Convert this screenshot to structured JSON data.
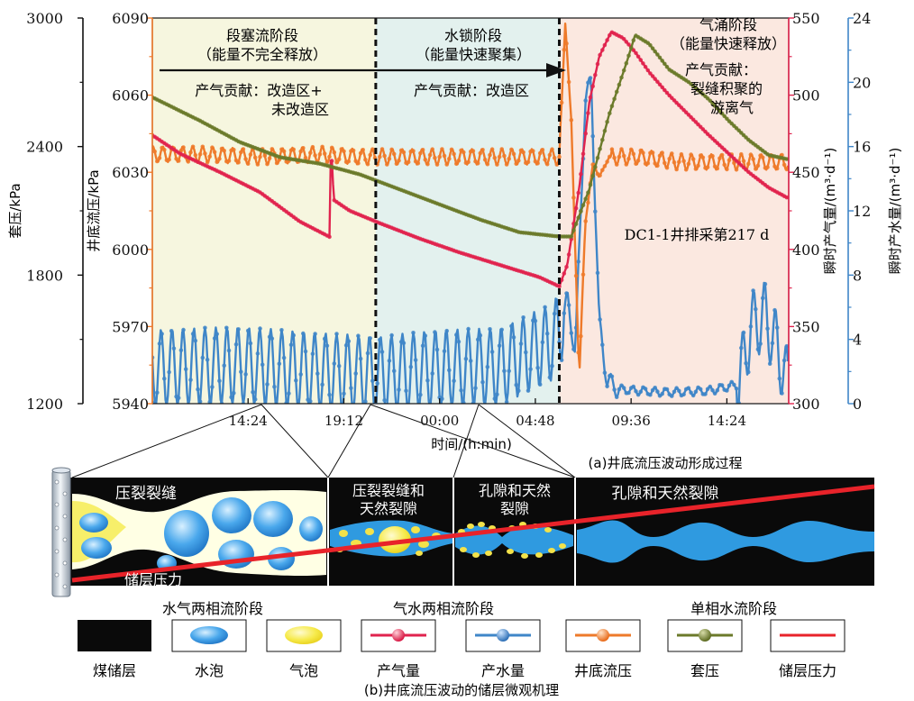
{
  "colors": {
    "casing": "#6b7a2a",
    "bhp": "#ee7a2a",
    "gas": "#e0234e",
    "water": "#3f86c8",
    "reservoir": "#e8232a",
    "axis_casing": "#111111",
    "axis_bhp": "#ee7a2a",
    "axis_gas": "#e0234e",
    "axis_water": "#3f86c8",
    "stage1_bg": "#f6f6df",
    "stage2_bg": "#e3f1ee",
    "stage3_bg": "#fbe8e0",
    "coal": "#0a0a0a",
    "water_fill": "#2f9ae0",
    "gas_fill": "#f3ea52"
  },
  "stages": [
    {
      "title": "段塞流阶段",
      "subtitle": "（能量不完全释放）",
      "contrib1": "产气贡献：改造区+",
      "contrib2": "未改造区"
    },
    {
      "title": "水锁阶段",
      "subtitle": "（能量快速聚集）",
      "contrib1": "产气贡献：改造区",
      "contrib2": ""
    },
    {
      "title": "气涌阶段",
      "subtitle": "（能量快速释放）",
      "contrib1": "产气贡献：",
      "contrib2": "裂缝积聚的",
      "contrib3": "游离气"
    }
  ],
  "well_note": "DC1-1井排采第217 d",
  "panel_a_caption": "(a)井底流压波动形成过程",
  "panel_b_caption": "(b)井底流压波动的储层微观机理",
  "xlabel": "时间/(h:min)",
  "flow_labels": {
    "zone1": "压裂裂缝",
    "zone2a": "压裂裂缝和",
    "zone2b": "天然裂隙",
    "zone3a": "孔隙和天然",
    "zone3b": "裂隙",
    "zone4": "孔隙和天然裂隙",
    "reservoir": "储层压力",
    "phase1": "水气两相流阶段",
    "phase2": "气水两相流阶段",
    "phase3": "单相水流阶段"
  },
  "legend": [
    "煤储层",
    "水泡",
    "气泡",
    "产气量",
    "产水量",
    "井底流压",
    "套压",
    "储层压力"
  ],
  "chart_data": {
    "type": "line",
    "x_ticks": [
      "14:24",
      "19:12",
      "00:00",
      "04:48",
      "09:36",
      "14:24"
    ],
    "x_tick_hours": [
      14.4,
      19.2,
      24.0,
      28.8,
      33.6,
      38.4
    ],
    "xlim_hours": [
      9.6,
      41.5
    ],
    "stage_boundaries_hours": [
      20.8,
      30.0
    ],
    "axes": {
      "casing": {
        "label": "套压/kPa",
        "ticks": [
          1200,
          1800,
          2400,
          3000
        ],
        "ylim": [
          1200,
          3000
        ]
      },
      "bhp": {
        "label": "井底流压/kPa",
        "ticks": [
          5940,
          5970,
          6000,
          6030,
          6060,
          6090
        ],
        "ylim": [
          5940,
          6090
        ]
      },
      "gas": {
        "label": "瞬时产气量/(m³·d⁻¹)",
        "ticks": [
          300,
          350,
          400,
          450,
          500,
          550
        ],
        "ylim": [
          300,
          550
        ]
      },
      "water": {
        "label": "瞬时产水量/(m³·d⁻¹)",
        "ticks": [
          0,
          4,
          8,
          12,
          16,
          20,
          24
        ],
        "ylim": [
          0,
          24
        ]
      }
    },
    "series": [
      {
        "name": "套压",
        "axis": "casing",
        "x": [
          9.6,
          12,
          14,
          16,
          18,
          20,
          22,
          24,
          26,
          28,
          30,
          30.6,
          31.5,
          32.5,
          33.4,
          33.8,
          34.5,
          35.5,
          36.5,
          37.5,
          38.5,
          39.5,
          40.5,
          41.5
        ],
        "y": [
          2630,
          2520,
          2420,
          2350,
          2320,
          2270,
          2200,
          2130,
          2060,
          2000,
          1980,
          1980,
          2200,
          2550,
          2800,
          2920,
          2880,
          2760,
          2700,
          2620,
          2520,
          2430,
          2360,
          2340
        ]
      },
      {
        "name": "井底流压",
        "axis": "bhp",
        "amplitude_kpa": 3,
        "x": [
          9.6,
          12,
          15,
          18,
          20,
          22,
          24,
          26,
          28,
          30,
          30.3,
          30.6,
          31.0,
          31.3,
          31.7,
          32.0,
          32.5,
          33.0,
          34,
          35,
          36,
          38,
          40,
          41.5
        ],
        "y": [
          6037,
          6037,
          6036,
          6037,
          6036,
          6036,
          6036,
          6036,
          6036,
          6036,
          6088,
          6050,
          5950,
          6010,
          6034,
          6028,
          6036,
          6036,
          6036,
          6035,
          6034,
          6034,
          6034,
          6034
        ]
      },
      {
        "name": "产气量",
        "axis": "gas",
        "x": [
          9.6,
          11,
          13,
          15,
          17,
          18.5,
          18.55,
          18.7,
          19.5,
          21,
          23,
          25,
          27,
          29,
          30.0,
          30.4,
          31.0,
          31.5,
          32.0,
          32.6,
          33.2,
          33.8,
          34.5,
          35.5,
          36.5,
          37.5,
          38.5,
          39.5,
          40.5,
          41.5
        ],
        "y": [
          474,
          462,
          450,
          437,
          418,
          408,
          470,
          432,
          425,
          417,
          407,
          398,
          390,
          382,
          376,
          390,
          440,
          495,
          525,
          541,
          537,
          528,
          515,
          500,
          487,
          474,
          462,
          450,
          440,
          433
        ]
      },
      {
        "name": "产水量",
        "axis": "water",
        "amplitude_m3": 2.4,
        "x": [
          9.6,
          14,
          18,
          21,
          24,
          27,
          29.6,
          30.0,
          30.4,
          30.8,
          31.3,
          31.6,
          32.0,
          32.4,
          33.0,
          34,
          35.5,
          37.5,
          39,
          39.6,
          40.3,
          41.0,
          41.5
        ],
        "y": [
          2.2,
          2.4,
          2.0,
          1.8,
          2.2,
          2.3,
          3.8,
          4.5,
          6.5,
          3.2,
          19.0,
          20.0,
          5.0,
          1.4,
          0.9,
          0.8,
          0.7,
          0.8,
          1.2,
          4.8,
          5.5,
          3.2,
          1.0
        ]
      }
    ]
  }
}
